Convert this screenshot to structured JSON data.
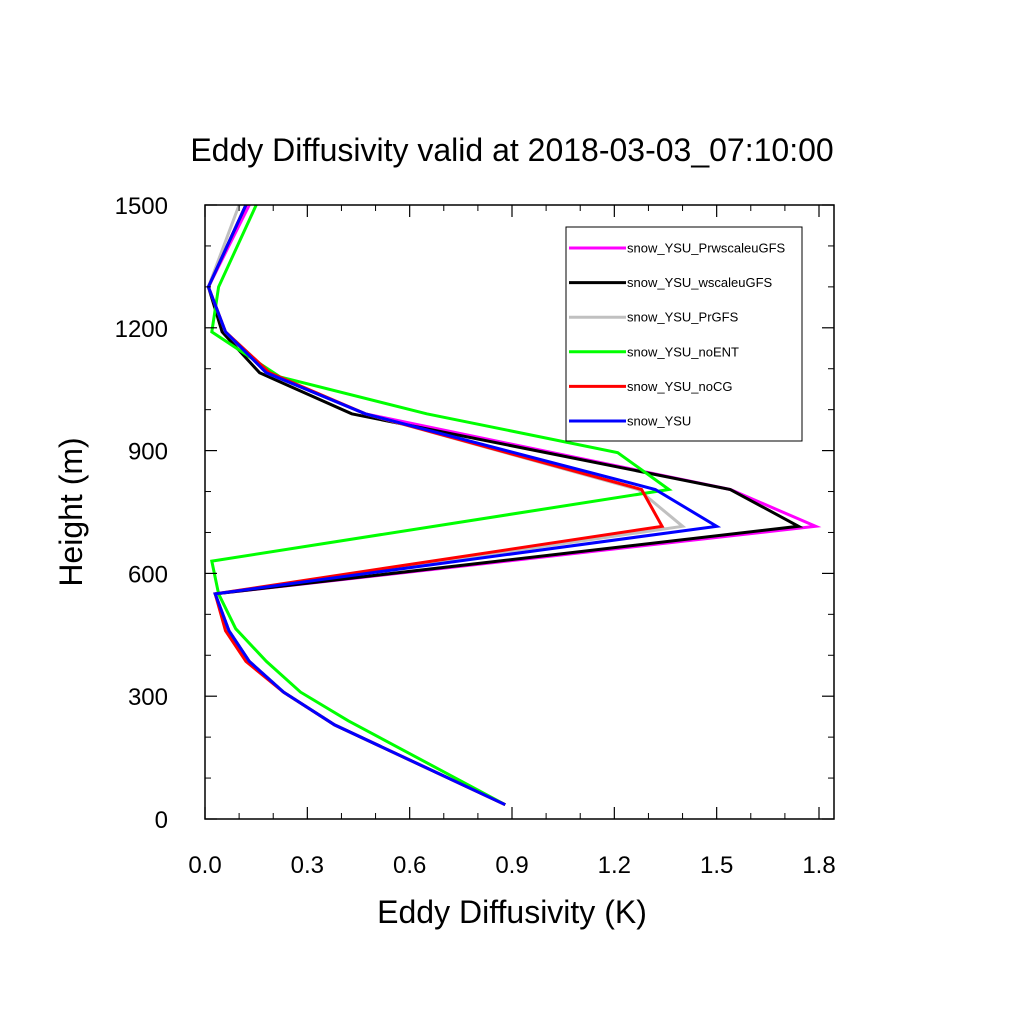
{
  "chart_data": {
    "type": "line",
    "title": "Eddy Diffusivity valid at 2018-03-03_07:10:00",
    "xlabel": "Eddy Diffusivity (K)",
    "ylabel": "Height (m)",
    "xlim": [
      0,
      1.8
    ],
    "ylim": [
      0,
      1500
    ],
    "xticks": [
      0.0,
      0.3,
      0.6,
      0.9,
      1.2,
      1.5,
      1.8
    ],
    "xtick_labels": [
      "0.0",
      "0.3",
      "0.6",
      "0.9",
      "1.2",
      "1.5",
      "1.8"
    ],
    "yticks": [
      0,
      300,
      600,
      900,
      1200,
      1500
    ],
    "ytick_labels": [
      "0",
      "300",
      "600",
      "900",
      "1200",
      "1500"
    ],
    "grid": false,
    "legend_position": "top-right",
    "series": [
      {
        "name": "snow_YSU_PrwscaleuGFS",
        "color": "#ff00ff",
        "points": [
          [
            0.88,
            35
          ],
          [
            0.38,
            230
          ],
          [
            0.23,
            310
          ],
          [
            0.13,
            385
          ],
          [
            0.07,
            460
          ],
          [
            0.03,
            550
          ],
          [
            1.79,
            715
          ],
          [
            1.54,
            805
          ],
          [
            0.47,
            990
          ],
          [
            0.18,
            1090
          ],
          [
            0.06,
            1190
          ],
          [
            0.01,
            1300
          ],
          [
            0.13,
            1500
          ]
        ]
      },
      {
        "name": "snow_YSU_wscaleuGFS",
        "color": "#000000",
        "points": [
          [
            0.88,
            35
          ],
          [
            0.38,
            230
          ],
          [
            0.23,
            310
          ],
          [
            0.13,
            385
          ],
          [
            0.07,
            460
          ],
          [
            0.03,
            550
          ],
          [
            1.74,
            715
          ],
          [
            1.54,
            805
          ],
          [
            0.43,
            990
          ],
          [
            0.16,
            1090
          ],
          [
            0.05,
            1190
          ],
          [
            0.01,
            1300
          ],
          [
            0.12,
            1500
          ]
        ]
      },
      {
        "name": "snow_YSU_PrGFS",
        "color": "#c0c0c0",
        "points": [
          [
            0.88,
            35
          ],
          [
            0.38,
            230
          ],
          [
            0.23,
            310
          ],
          [
            0.13,
            385
          ],
          [
            0.07,
            460
          ],
          [
            0.03,
            550
          ],
          [
            1.4,
            715
          ],
          [
            1.27,
            805
          ],
          [
            0.47,
            990
          ],
          [
            0.18,
            1090
          ],
          [
            0.06,
            1190
          ],
          [
            0.01,
            1300
          ],
          [
            0.1,
            1500
          ]
        ]
      },
      {
        "name": "snow_YSU_noENT",
        "color": "#00ff00",
        "points": [
          [
            0.88,
            35
          ],
          [
            0.42,
            240
          ],
          [
            0.28,
            310
          ],
          [
            0.18,
            385
          ],
          [
            0.09,
            465
          ],
          [
            0.04,
            550
          ],
          [
            0.02,
            630
          ],
          [
            1.36,
            805
          ],
          [
            1.21,
            895
          ],
          [
            0.65,
            990
          ],
          [
            0.22,
            1080
          ],
          [
            0.02,
            1190
          ],
          [
            0.04,
            1300
          ],
          [
            0.15,
            1500
          ]
        ]
      },
      {
        "name": "snow_YSU_noCG",
        "color": "#ff0000",
        "points": [
          [
            0.88,
            35
          ],
          [
            0.38,
            230
          ],
          [
            0.23,
            310
          ],
          [
            0.12,
            385
          ],
          [
            0.06,
            460
          ],
          [
            0.03,
            550
          ],
          [
            1.34,
            715
          ],
          [
            1.28,
            805
          ],
          [
            0.47,
            990
          ],
          [
            0.19,
            1090
          ],
          [
            0.06,
            1190
          ],
          [
            0.01,
            1300
          ],
          [
            0.12,
            1500
          ]
        ]
      },
      {
        "name": "snow_YSU",
        "color": "#0000ff",
        "points": [
          [
            0.88,
            35
          ],
          [
            0.38,
            230
          ],
          [
            0.23,
            310
          ],
          [
            0.13,
            385
          ],
          [
            0.07,
            460
          ],
          [
            0.03,
            550
          ],
          [
            1.5,
            715
          ],
          [
            1.32,
            805
          ],
          [
            0.47,
            990
          ],
          [
            0.18,
            1090
          ],
          [
            0.06,
            1190
          ],
          [
            0.01,
            1300
          ],
          [
            0.12,
            1500
          ]
        ]
      }
    ]
  }
}
